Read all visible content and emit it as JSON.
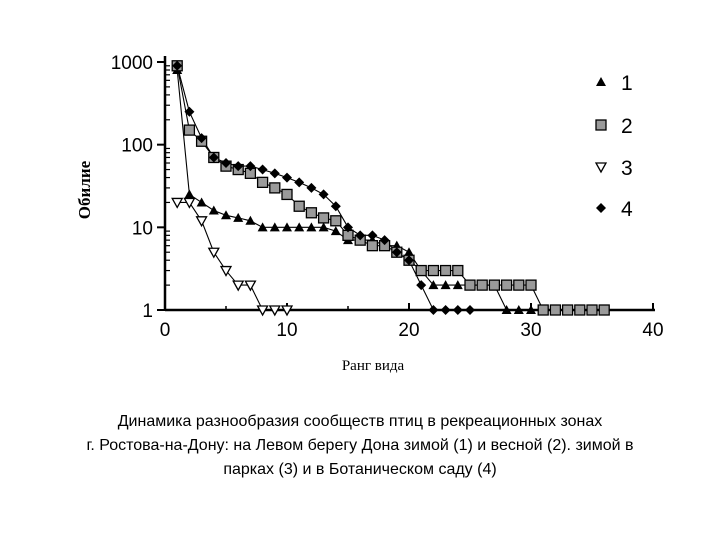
{
  "chart_data": {
    "type": "line",
    "yscale": "log",
    "xlim": [
      0,
      40
    ],
    "ylim": [
      1,
      1000
    ],
    "xlabel": "Ранг вида",
    "ylabel": "Обилие",
    "x_ticks": [
      "0",
      "10",
      "20",
      "30",
      "40"
    ],
    "y_ticks": [
      "1",
      "10",
      "100",
      "1000"
    ],
    "legend_position": "right",
    "series": [
      {
        "name": "1",
        "marker": "triangle",
        "x": [
          1,
          2,
          3,
          4,
          5,
          6,
          7,
          8,
          9,
          10,
          11,
          12,
          13,
          14,
          15,
          16,
          17,
          18,
          19,
          20,
          21,
          22,
          23,
          24,
          25,
          26,
          27,
          28,
          29,
          30,
          31,
          32
        ],
        "y": [
          800,
          25,
          20,
          16,
          14,
          13,
          12,
          10,
          10,
          10,
          10,
          10,
          10,
          9,
          7,
          7,
          7,
          6,
          6,
          5,
          3,
          2,
          2,
          2,
          2,
          2,
          2,
          1,
          1,
          1,
          1,
          1
        ]
      },
      {
        "name": "2",
        "marker": "square",
        "x": [
          1,
          2,
          3,
          4,
          5,
          6,
          7,
          8,
          9,
          10,
          11,
          12,
          13,
          14,
          15,
          16,
          17,
          18,
          19,
          20,
          21,
          22,
          23,
          24,
          25,
          26,
          27,
          28,
          29,
          30,
          31,
          32,
          33,
          34,
          35,
          36
        ],
        "y": [
          900,
          150,
          110,
          70,
          55,
          50,
          45,
          35,
          30,
          25,
          18,
          15,
          13,
          12,
          8,
          7,
          6,
          6,
          5,
          4,
          3,
          3,
          3,
          3,
          2,
          2,
          2,
          2,
          2,
          2,
          1,
          1,
          1,
          1,
          1,
          1
        ]
      },
      {
        "name": "3",
        "marker": "triangle-down",
        "x": [
          1,
          2,
          3,
          4,
          5,
          6,
          7,
          8,
          9,
          10
        ],
        "y": [
          20,
          20,
          12,
          5,
          3,
          2,
          2,
          1,
          1,
          1
        ]
      },
      {
        "name": "4",
        "marker": "diamond",
        "x": [
          1,
          2,
          3,
          4,
          5,
          6,
          7,
          8,
          9,
          10,
          11,
          12,
          13,
          14,
          15,
          16,
          17,
          18,
          19,
          20,
          21,
          22,
          23,
          24,
          25
        ],
        "y": [
          900,
          250,
          120,
          70,
          60,
          55,
          55,
          50,
          45,
          40,
          35,
          30,
          25,
          18,
          10,
          8,
          8,
          7,
          5,
          4,
          2,
          1,
          1,
          1,
          1
        ]
      }
    ]
  },
  "caption": {
    "line1": "Динамика разнообразия сообществ птиц в рекреационных зонах",
    "line2": "г. Ростова-на-Дону: на Левом берегу Дона зимой (1) и весной (2). зимой в",
    "line3": "парках (3) и в Ботаническом саду (4)"
  }
}
